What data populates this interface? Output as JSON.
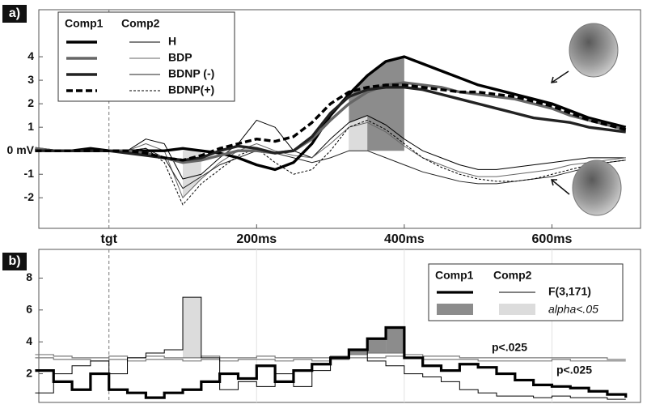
{
  "chart_data": [
    {
      "type": "line",
      "panel_label": "a)",
      "x": [
        -100,
        -75,
        -50,
        -25,
        0,
        25,
        50,
        75,
        100,
        125,
        150,
        175,
        200,
        225,
        250,
        275,
        300,
        325,
        350,
        375,
        400,
        425,
        450,
        475,
        500,
        525,
        550,
        575,
        600,
        625,
        650,
        675,
        700
      ],
      "xlim": [
        -95,
        720
      ],
      "xticks": [
        {
          "value": 0,
          "label": "tgt"
        },
        {
          "value": 200,
          "label": "200ms"
        },
        {
          "value": 400,
          "label": "400ms"
        },
        {
          "value": 600,
          "label": "600ms"
        }
      ],
      "ylim": [
        -3.3,
        6
      ],
      "yticks": [
        -2,
        -1,
        {
          "value": 0,
          "label": "0 mV"
        },
        1,
        2,
        3,
        4
      ],
      "groups": [
        "Comp1",
        "Comp2"
      ],
      "series": [
        {
          "name": "H",
          "color": "#000000",
          "dashed": false,
          "values": [
            [
              0.1,
              0,
              0,
              0.1,
              0,
              0,
              0,
              0,
              0.1,
              0,
              -0.1,
              -0.3,
              -0.6,
              -0.8,
              -0.5,
              0.3,
              1.5,
              2.4,
              3.2,
              3.8,
              4.0,
              3.7,
              3.4,
              3.1,
              2.8,
              2.6,
              2.4,
              2.2,
              2.0,
              1.7,
              1.4,
              1.2,
              1.0
            ],
            [
              0,
              0,
              0,
              0,
              0,
              0,
              0.5,
              0.3,
              -1.2,
              -1.0,
              -0.3,
              0.3,
              1.3,
              1.0,
              0,
              -0.3,
              0.5,
              1.2,
              1.5,
              1.1,
              0.5,
              0,
              -0.3,
              -0.6,
              -0.8,
              -0.8,
              -0.7,
              -0.6,
              -0.5,
              -0.4,
              -0.3,
              -0.3,
              -0.3
            ]
          ]
        },
        {
          "name": "BDP",
          "color": "#666666",
          "dashed": false,
          "values": [
            [
              0.1,
              0,
              0,
              0,
              0,
              0,
              -0.1,
              -0.3,
              -0.5,
              -0.4,
              -0.2,
              0,
              0,
              -0.1,
              0,
              0.5,
              1.3,
              2.0,
              2.5,
              2.8,
              2.9,
              2.8,
              2.7,
              2.5,
              2.4,
              2.3,
              2.2,
              2.0,
              1.8,
              1.5,
              1.3,
              1.1,
              0.9
            ],
            [
              0,
              0,
              0,
              0,
              0,
              0,
              0.3,
              0,
              -2.0,
              -1.2,
              -0.5,
              0,
              0.3,
              0,
              -0.2,
              -0.3,
              0.3,
              1.0,
              1.2,
              0.8,
              0.2,
              -0.3,
              -0.6,
              -0.9,
              -1.1,
              -1.1,
              -1.0,
              -0.9,
              -0.8,
              -0.6,
              -0.5,
              -0.4,
              -0.3
            ]
          ]
        },
        {
          "name": "BDNP (-)",
          "color": "#222222",
          "dashed": false,
          "values": [
            [
              0,
              0,
              0,
              0,
              0,
              -0.1,
              -0.2,
              -0.3,
              -0.4,
              -0.3,
              0,
              0.2,
              0.1,
              -0.1,
              0,
              0.6,
              1.6,
              2.3,
              2.6,
              2.7,
              2.7,
              2.6,
              2.4,
              2.2,
              2.0,
              1.8,
              1.6,
              1.4,
              1.3,
              1.2,
              1.0,
              0.9,
              0.8
            ],
            [
              0,
              0,
              0,
              0,
              0,
              0,
              0.1,
              -0.3,
              -1.6,
              -1.1,
              -0.6,
              -0.3,
              0,
              -0.1,
              -0.3,
              -0.5,
              -0.3,
              0,
              0,
              -0.3,
              -0.6,
              -0.9,
              -1.1,
              -1.3,
              -1.4,
              -1.4,
              -1.3,
              -1.2,
              -1.1,
              -0.9,
              -0.7,
              -0.5,
              -0.4
            ]
          ]
        },
        {
          "name": "BDNP(+)",
          "color": "#000000",
          "dashed": true,
          "values": [
            [
              0,
              0,
              0,
              0,
              0,
              0,
              -0.1,
              -0.3,
              -0.4,
              -0.2,
              0.1,
              0.3,
              0.5,
              0.4,
              0.6,
              1.2,
              2.0,
              2.5,
              2.7,
              2.8,
              2.8,
              2.7,
              2.6,
              2.5,
              2.5,
              2.4,
              2.3,
              2.1,
              1.9,
              1.6,
              1.3,
              1.1,
              0.9
            ],
            [
              0,
              0,
              0,
              0,
              0,
              0,
              0.1,
              -0.5,
              -2.3,
              -1.4,
              -0.8,
              -0.2,
              0.1,
              -0.5,
              -1.0,
              -0.8,
              0,
              1.0,
              1.3,
              0.9,
              0.3,
              -0.3,
              -0.7,
              -1.0,
              -1.2,
              -1.3,
              -1.3,
              -1.2,
              -1.0,
              -0.8,
              -0.6,
              -0.5,
              -0.4
            ]
          ]
        }
      ],
      "highlights": [
        {
          "group": 0,
          "series": 0,
          "from": 325,
          "to": 400,
          "color": "#8c8c8c"
        },
        {
          "group": 1,
          "series": 1,
          "from": 100,
          "to": 125,
          "color": "#dcdcdc"
        },
        {
          "group": 1,
          "series": 0,
          "from": 325,
          "to": 350,
          "color": "#dcdcdc"
        }
      ]
    },
    {
      "type": "step",
      "panel_label": "b)",
      "x": [
        -100,
        -75,
        -50,
        -25,
        0,
        25,
        50,
        75,
        100,
        125,
        150,
        175,
        200,
        225,
        250,
        275,
        300,
        325,
        350,
        375,
        400,
        425,
        450,
        475,
        500,
        525,
        550,
        575,
        600,
        625,
        650,
        675,
        700
      ],
      "xlim": [
        -95,
        720
      ],
      "xticks": [
        0,
        200,
        400,
        600
      ],
      "ylim": [
        0.2,
        9.8
      ],
      "yticks": [
        2,
        4,
        6,
        8
      ],
      "groups": [
        "Comp1",
        "Comp2"
      ],
      "series": [
        {
          "name": "F(3,171)",
          "color": "#000000",
          "values": [
            [
              2.2,
              1.5,
              1.0,
              2.0,
              1.0,
              0.8,
              0.5,
              0.8,
              1.0,
              1.5,
              2.0,
              1.7,
              2.5,
              1.5,
              2.2,
              2.6,
              3.0,
              3.5,
              4.2,
              4.9,
              3.0,
              2.5,
              2.2,
              2.6,
              2.4,
              2.0,
              1.6,
              1.3,
              1.2,
              1.1,
              0.9,
              0.7,
              0.5
            ],
            [
              0.8,
              2.0,
              2.5,
              2.8,
              2.0,
              3.0,
              3.3,
              3.5,
              6.8,
              3.0,
              1.0,
              1.5,
              1.2,
              2.0,
              1.2,
              2.2,
              3.0,
              3.5,
              2.8,
              2.5,
              2.0,
              1.8,
              1.5,
              1.0,
              0.8,
              0.6,
              0.6,
              0.5,
              0.6,
              0.5,
              0.5,
              0.4,
              0.4
            ]
          ]
        }
      ],
      "alpha_label": "alpha<.05",
      "alpha_colors": [
        "#8c8c8c",
        "#dcdcdc"
      ],
      "thresholds": [
        {
          "label": "p<.025",
          "color": "#7a7a7a",
          "values": [
            3.2,
            3.1,
            3.0,
            3.0,
            3.1,
            3.0,
            3.1,
            3.0,
            3.0,
            3.1,
            3.0,
            3.0,
            3.1,
            3.0,
            3.0,
            3.0,
            3.1,
            3.2,
            3.3,
            3.3,
            3.2,
            3.1,
            3.1,
            3.0,
            3.0,
            3.0,
            3.0,
            3.0,
            3.0,
            3.0,
            3.0,
            2.9,
            2.9
          ]
        },
        {
          "label": "p<.025",
          "color": "#7a7a7a",
          "values": [
            3.0,
            2.9,
            2.9,
            2.8,
            2.9,
            2.8,
            2.9,
            2.9,
            2.8,
            2.9,
            2.8,
            2.9,
            2.9,
            2.8,
            2.9,
            2.8,
            2.9,
            3.0,
            3.0,
            3.1,
            3.0,
            2.9,
            2.9,
            2.9,
            2.8,
            2.8,
            2.8,
            2.8,
            2.9,
            2.8,
            2.8,
            2.8,
            2.8
          ]
        }
      ],
      "highlights": [
        {
          "group": 0,
          "series": 0,
          "from": 325,
          "to": 400
        },
        {
          "group": 1,
          "series": 0,
          "from": 100,
          "to": 125
        }
      ]
    }
  ]
}
